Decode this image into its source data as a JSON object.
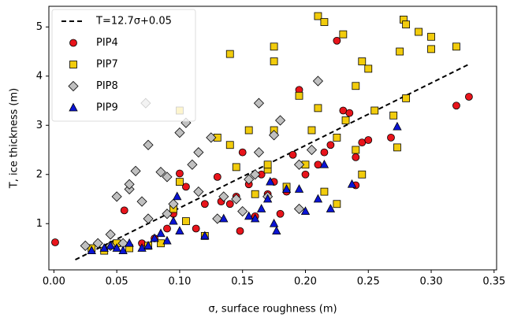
{
  "chart_data": {
    "type": "scatter",
    "xlabel": "σ, surface roughness (m)",
    "ylabel": "T, ice thickness (m)",
    "xlim": [
      -0.004,
      0.352
    ],
    "ylim": [
      0.06,
      5.42
    ],
    "xticks": [
      {
        "value": 0,
        "label": "0.00"
      },
      0.05,
      {
        "value": 0.1,
        "label": "0.10"
      },
      0.15,
      {
        "value": 0.2,
        "label": "0.20"
      },
      0.25,
      {
        "value": 0.3,
        "label": "0.30"
      },
      0.35
    ],
    "yticks": [
      1,
      2,
      3,
      4,
      5
    ],
    "grid": false,
    "legend": "upper left",
    "series": [
      {
        "name": "T=12.7σ+0.05",
        "type": "line",
        "dash": true,
        "color": "#000000",
        "x": [
          0.017,
          0.33
        ],
        "values": [
          0.266,
          4.241
        ]
      },
      {
        "name": "PIP4",
        "marker": "circle",
        "color": "#e8141b",
        "x": [
          0.001,
          0.056,
          0.1,
          0.095,
          0.105,
          0.113,
          0.12,
          0.13,
          0.133,
          0.14,
          0.145,
          0.15,
          0.148,
          0.155,
          0.16,
          0.165,
          0.17,
          0.175,
          0.18,
          0.185,
          0.19,
          0.195,
          0.2,
          0.21,
          0.215,
          0.22,
          0.225,
          0.23,
          0.235,
          0.24,
          0.245,
          0.25,
          0.24,
          0.268,
          0.32,
          0.33,
          0.08,
          0.07,
          0.09
        ],
        "values": [
          0.62,
          1.27,
          2.02,
          1.2,
          1.75,
          0.9,
          1.4,
          1.95,
          1.45,
          1.4,
          1.55,
          2.45,
          0.85,
          1.8,
          1.15,
          2.0,
          1.6,
          1.85,
          1.2,
          1.65,
          2.4,
          3.72,
          2.0,
          2.2,
          2.45,
          2.6,
          4.72,
          3.3,
          3.25,
          2.35,
          2.65,
          2.7,
          1.78,
          2.75,
          3.4,
          3.58,
          0.7,
          0.6,
          0.9
        ]
      },
      {
        "name": "PIP7",
        "marker": "square",
        "color": "#f2cc0c",
        "x": [
          0.03,
          0.04,
          0.05,
          0.06,
          0.075,
          0.085,
          0.095,
          0.1,
          0.105,
          0.1,
          0.12,
          0.13,
          0.14,
          0.14,
          0.145,
          0.155,
          0.16,
          0.17,
          0.17,
          0.175,
          0.175,
          0.175,
          0.185,
          0.195,
          0.2,
          0.205,
          0.21,
          0.21,
          0.215,
          0.225,
          0.225,
          0.23,
          0.232,
          0.24,
          0.24,
          0.245,
          0.245,
          0.25,
          0.255,
          0.27,
          0.273,
          0.275,
          0.278,
          0.28,
          0.28,
          0.29,
          0.3,
          0.3,
          0.32,
          0.215
        ],
        "values": [
          0.5,
          0.45,
          0.6,
          0.5,
          0.55,
          0.6,
          1.3,
          1.85,
          1.05,
          3.3,
          0.75,
          2.75,
          2.6,
          4.45,
          2.15,
          2.9,
          1.6,
          2.1,
          2.2,
          4.6,
          4.3,
          2.9,
          1.75,
          3.6,
          2.2,
          2.9,
          3.35,
          5.22,
          5.1,
          2.75,
          1.4,
          4.85,
          3.1,
          2.5,
          3.8,
          4.3,
          2.0,
          4.15,
          3.3,
          3.2,
          2.55,
          4.5,
          5.15,
          5.05,
          3.55,
          4.9,
          4.8,
          4.55,
          4.6,
          1.65
        ]
      },
      {
        "name": "PIP8",
        "marker": "diamond",
        "color": "#c0c0c0",
        "x": [
          0.025,
          0.035,
          0.045,
          0.05,
          0.06,
          0.06,
          0.065,
          0.07,
          0.073,
          0.075,
          0.085,
          0.09,
          0.09,
          0.095,
          0.1,
          0.105,
          0.11,
          0.115,
          0.115,
          0.125,
          0.13,
          0.135,
          0.145,
          0.15,
          0.155,
          0.16,
          0.163,
          0.163,
          0.17,
          0.175,
          0.18,
          0.195,
          0.195,
          0.205,
          0.21,
          0.045,
          0.055,
          0.075
        ],
        "values": [
          0.55,
          0.6,
          0.78,
          1.55,
          1.7,
          1.8,
          2.07,
          1.45,
          3.45,
          2.6,
          2.05,
          1.95,
          1.2,
          1.4,
          2.85,
          3.05,
          2.2,
          2.45,
          1.65,
          2.75,
          1.1,
          1.55,
          1.5,
          1.25,
          1.9,
          2.0,
          3.45,
          2.45,
          1.55,
          2.8,
          3.1,
          2.2,
          1.3,
          2.5,
          3.9,
          0.55,
          0.6,
          1.1
        ]
      },
      {
        "name": "PIP9",
        "marker": "triangle",
        "color": "#0a14d4",
        "x": [
          0.03,
          0.04,
          0.045,
          0.05,
          0.055,
          0.06,
          0.07,
          0.075,
          0.08,
          0.085,
          0.09,
          0.095,
          0.098,
          0.1,
          0.12,
          0.135,
          0.155,
          0.16,
          0.165,
          0.17,
          0.172,
          0.175,
          0.177,
          0.185,
          0.195,
          0.2,
          0.21,
          0.215,
          0.22,
          0.237,
          0.273
        ],
        "values": [
          0.45,
          0.5,
          0.55,
          0.5,
          0.45,
          0.6,
          0.5,
          0.55,
          0.7,
          0.8,
          0.65,
          1.05,
          1.55,
          0.85,
          0.75,
          1.1,
          1.15,
          1.1,
          1.3,
          1.5,
          1.85,
          1.0,
          0.85,
          1.7,
          1.7,
          1.25,
          1.5,
          2.2,
          1.3,
          1.8,
          2.97
        ]
      }
    ]
  }
}
